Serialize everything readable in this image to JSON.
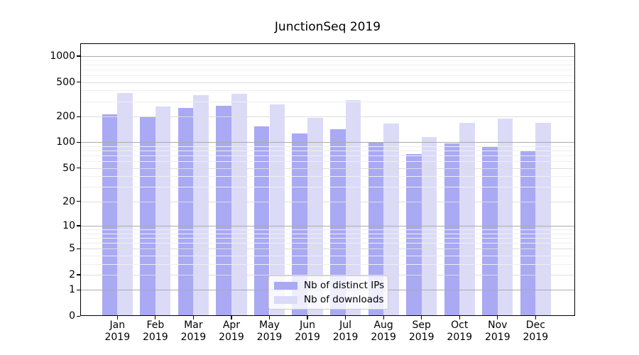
{
  "title": "JunctionSeq 2019",
  "chart_data": {
    "type": "bar",
    "title": "JunctionSeq 2019",
    "categories": [
      "Jan",
      "Feb",
      "Mar",
      "Apr",
      "May",
      "Jun",
      "Jul",
      "Aug",
      "Sep",
      "Oct",
      "Nov",
      "Dec"
    ],
    "category_year": "2019",
    "series": [
      {
        "name": "Nb of distinct IPs",
        "color": "#a9a9f4",
        "values": [
          210,
          200,
          250,
          265,
          154,
          126,
          141,
          100,
          73,
          98,
          90,
          81
        ]
      },
      {
        "name": "Nb of downloads",
        "color": "#dbdbf8",
        "values": [
          377,
          261,
          355,
          368,
          275,
          192,
          312,
          165,
          116,
          170,
          188,
          169
        ]
      }
    ],
    "y_ticks": [
      0,
      1,
      2,
      5,
      10,
      20,
      50,
      100,
      200,
      500,
      1000
    ],
    "y_scale": "log10(1+x)",
    "ylim": [
      0,
      1350
    ],
    "grid": true,
    "legend_position": "inside-lower-center"
  },
  "colors": {
    "grid_major": "#ababab",
    "grid_mid": "#dddddd",
    "grid_minor": "#efefef",
    "axis": "#000000",
    "background": "#ffffff"
  }
}
